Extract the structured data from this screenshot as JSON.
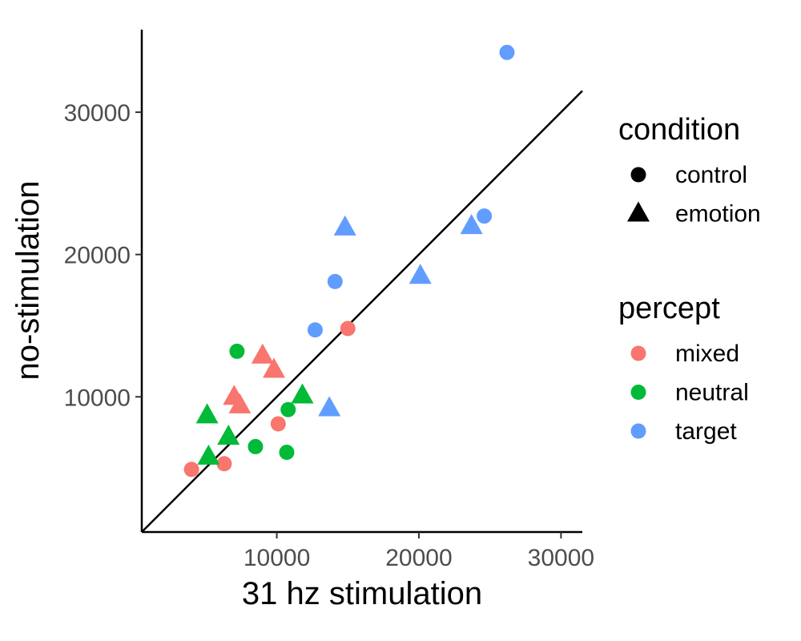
{
  "chart_data": {
    "type": "scatter",
    "xlabel": "31 hz stimulation",
    "ylabel": "no-stimulation",
    "xlim": [
      500,
      31500
    ],
    "ylim": [
      500,
      35800
    ],
    "x_ticks": [
      10000,
      20000,
      30000
    ],
    "x_tick_labels": [
      "10000",
      "20000",
      "30000"
    ],
    "y_ticks": [
      10000,
      20000,
      30000
    ],
    "y_tick_labels": [
      "10000",
      "20000",
      "30000"
    ],
    "grid": false,
    "reference_line": {
      "slope": 1,
      "intercept": 0
    },
    "legend_placement": "right",
    "legends": [
      {
        "title": "condition",
        "key": "condition",
        "entries": [
          {
            "label": "control",
            "shape": "circle"
          },
          {
            "label": "emotion",
            "shape": "triangle"
          }
        ]
      },
      {
        "title": "percept",
        "key": "percept",
        "entries": [
          {
            "label": "mixed",
            "color": "#F8766D"
          },
          {
            "label": "neutral",
            "color": "#00BA38"
          },
          {
            "label": "target",
            "color": "#619CFF"
          }
        ]
      }
    ],
    "points": [
      {
        "x": 4000,
        "y": 4900,
        "condition": "control",
        "percept": "mixed"
      },
      {
        "x": 6300,
        "y": 5300,
        "condition": "control",
        "percept": "mixed"
      },
      {
        "x": 10100,
        "y": 8100,
        "condition": "control",
        "percept": "mixed"
      },
      {
        "x": 15000,
        "y": 14800,
        "condition": "control",
        "percept": "mixed"
      },
      {
        "x": 7000,
        "y": 10000,
        "condition": "emotion",
        "percept": "mixed"
      },
      {
        "x": 7400,
        "y": 9400,
        "condition": "emotion",
        "percept": "mixed"
      },
      {
        "x": 9000,
        "y": 12900,
        "condition": "emotion",
        "percept": "mixed"
      },
      {
        "x": 9800,
        "y": 11900,
        "condition": "emotion",
        "percept": "mixed"
      },
      {
        "x": 7200,
        "y": 13200,
        "condition": "control",
        "percept": "neutral"
      },
      {
        "x": 8500,
        "y": 6500,
        "condition": "control",
        "percept": "neutral"
      },
      {
        "x": 10700,
        "y": 6100,
        "condition": "control",
        "percept": "neutral"
      },
      {
        "x": 10800,
        "y": 9100,
        "condition": "control",
        "percept": "neutral"
      },
      {
        "x": 5200,
        "y": 5800,
        "condition": "emotion",
        "percept": "neutral"
      },
      {
        "x": 5100,
        "y": 8700,
        "condition": "emotion",
        "percept": "neutral"
      },
      {
        "x": 6600,
        "y": 7200,
        "condition": "emotion",
        "percept": "neutral"
      },
      {
        "x": 11800,
        "y": 10100,
        "condition": "emotion",
        "percept": "neutral"
      },
      {
        "x": 12700,
        "y": 14700,
        "condition": "control",
        "percept": "target"
      },
      {
        "x": 14100,
        "y": 18100,
        "condition": "control",
        "percept": "target"
      },
      {
        "x": 24600,
        "y": 22700,
        "condition": "control",
        "percept": "target"
      },
      {
        "x": 26200,
        "y": 34200,
        "condition": "control",
        "percept": "target"
      },
      {
        "x": 13700,
        "y": 9200,
        "condition": "emotion",
        "percept": "target"
      },
      {
        "x": 14800,
        "y": 21900,
        "condition": "emotion",
        "percept": "target"
      },
      {
        "x": 20100,
        "y": 18500,
        "condition": "emotion",
        "percept": "target"
      },
      {
        "x": 23700,
        "y": 22000,
        "condition": "emotion",
        "percept": "target"
      }
    ]
  }
}
